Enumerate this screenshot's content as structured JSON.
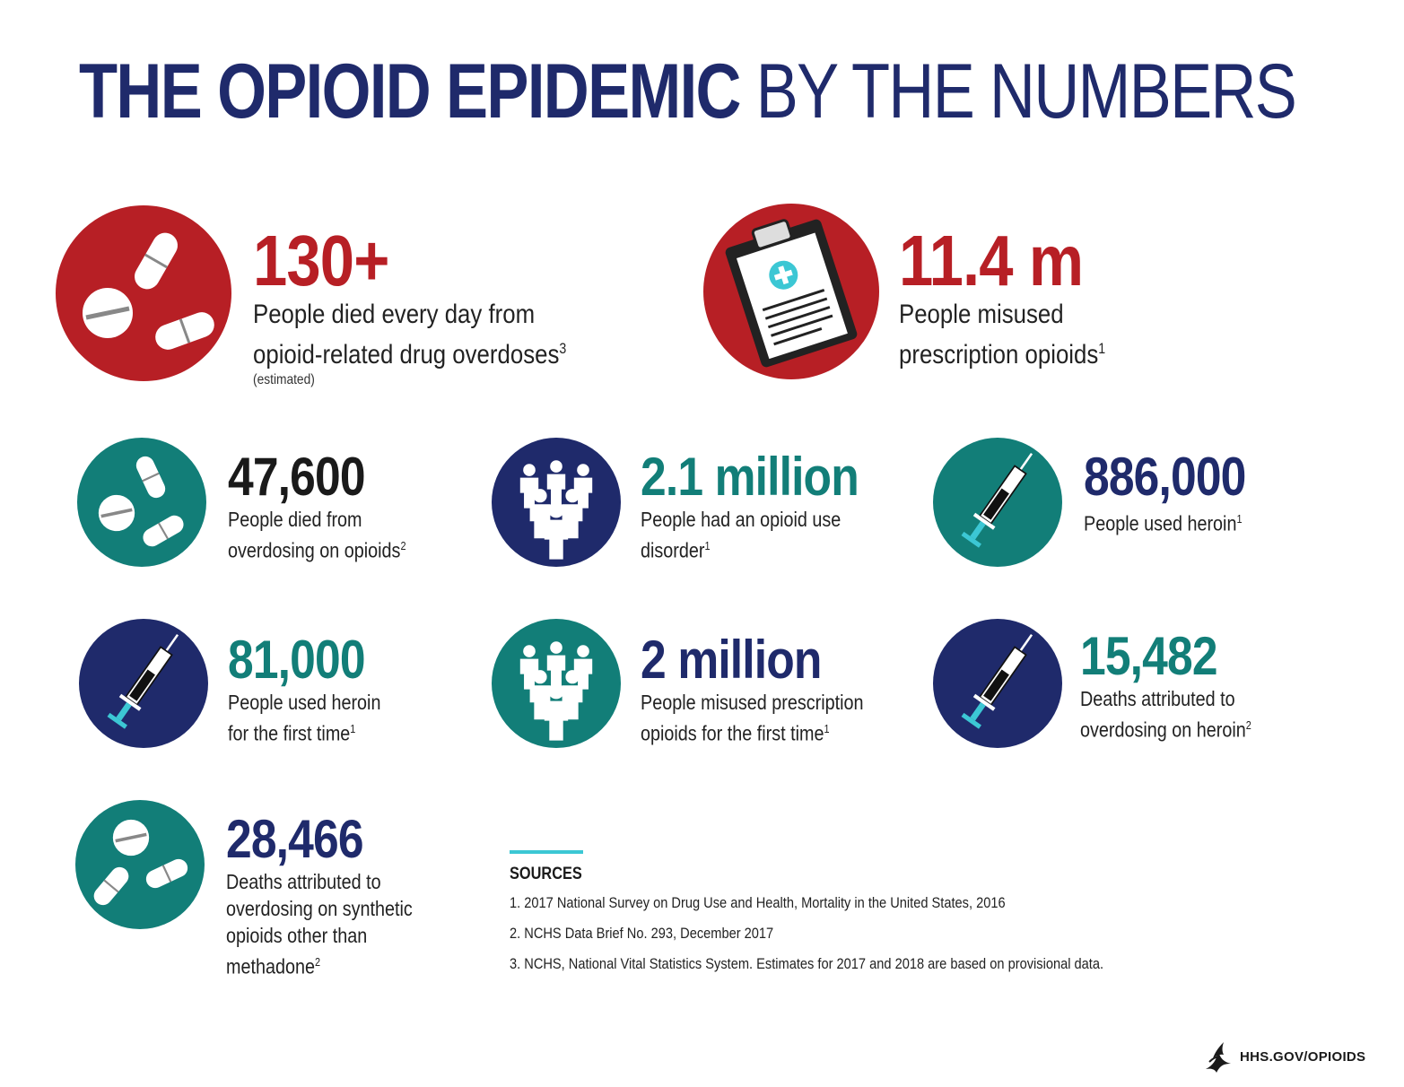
{
  "title": {
    "bold": "THE OPIOID EPIDEMIC",
    "light": "BY THE NUMBERS"
  },
  "colors": {
    "navy": "#1f2a6b",
    "red": "#b71f25",
    "teal": "#127e78",
    "cyan": "#3cc7d4"
  },
  "stats": [
    {
      "number": "130+",
      "line1": "People died every day from",
      "line2": "opioid-related drug overdoses",
      "sup": "3",
      "note": "(estimated)",
      "icon": "pills-icon"
    },
    {
      "number": "11.4 m",
      "line1": "People misused",
      "line2": "prescription opioids",
      "sup": "1",
      "icon": "clipboard-icon"
    },
    {
      "number": "47,600",
      "line1": "People died from",
      "line2": "overdosing on opioids",
      "sup": "2",
      "icon": "pills-icon"
    },
    {
      "number": "2.1 million",
      "line1": "People had an opioid use",
      "line2": "disorder",
      "sup": "1",
      "icon": "people-icon"
    },
    {
      "number": "886,000",
      "line1": "People used heroin",
      "sup": "1",
      "icon": "syringe-icon"
    },
    {
      "number": "81,000",
      "line1": "People used heroin",
      "line2": "for the first time",
      "sup": "1",
      "icon": "syringe-icon"
    },
    {
      "number": "2 million",
      "line1": "People misused prescription",
      "line2": "opioids for the first time",
      "sup": "1",
      "icon": "people-icon"
    },
    {
      "number": "15,482",
      "line1": "Deaths attributed to",
      "line2": "overdosing on heroin",
      "sup": "2",
      "icon": "syringe-icon"
    },
    {
      "number": "28,466",
      "line1": "Deaths attributed to",
      "line2": "overdosing on synthetic",
      "line3": "opioids other than",
      "line4": "methadone",
      "sup": "2",
      "icon": "pills-icon"
    }
  ],
  "sources": {
    "heading": "SOURCES",
    "items": [
      "1.  2017 National Survey on Drug Use and Health, Mortality in the United States, 2016",
      "2.  NCHS Data Brief No. 293, December 2017",
      "3.  NCHS, National Vital Statistics System. Estimates for 2017 and 2018 are based on provisional data."
    ]
  },
  "footer": {
    "logo_text": "HHS.GOV/OPIOIDS",
    "icon": "hhs-eagle-icon"
  }
}
